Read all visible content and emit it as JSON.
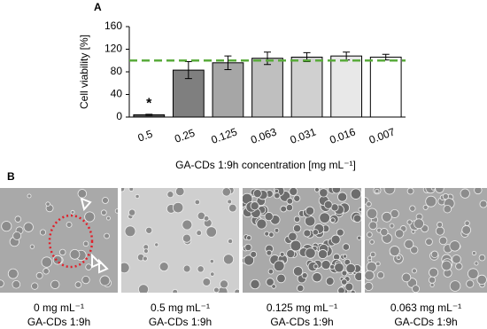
{
  "chart_data": {
    "type": "bar",
    "panel_label": "A",
    "ylabel": "Cell viability [%]",
    "xlabel": "GA-CDs 1:9h concentration [mg mL⁻¹]",
    "categories": [
      "0.5",
      "0.25",
      "0.125",
      "0.063",
      "0.031",
      "0.016",
      "0.007"
    ],
    "values": [
      4,
      83,
      96,
      104,
      106,
      108,
      106
    ],
    "errors": [
      1,
      15,
      12,
      11,
      8,
      7,
      5
    ],
    "colors": [
      "#595959",
      "#7f7f7f",
      "#a6a6a6",
      "#bfbfbf",
      "#d0d0d0",
      "#e8e8e8",
      "#ffffff"
    ],
    "annotation": "*",
    "reference_line": {
      "value": 100,
      "color": "#5aab3c"
    },
    "ylim": [
      0,
      160
    ],
    "yticks": [
      0,
      40,
      80,
      120,
      160
    ]
  },
  "panel_b": {
    "label": "B",
    "images": [
      {
        "line1": "0 mg mL⁻¹",
        "line2": "GA-CDs 1:9h"
      },
      {
        "line1": "0.5 mg mL⁻¹",
        "line2": "GA-CDs 1:9h"
      },
      {
        "line1": "0.125 mg mL⁻¹",
        "line2": "GA-CDs 1:9h"
      },
      {
        "line1": "0.063 mg mL⁻¹",
        "line2": "GA-CDs 1:9h"
      }
    ]
  }
}
